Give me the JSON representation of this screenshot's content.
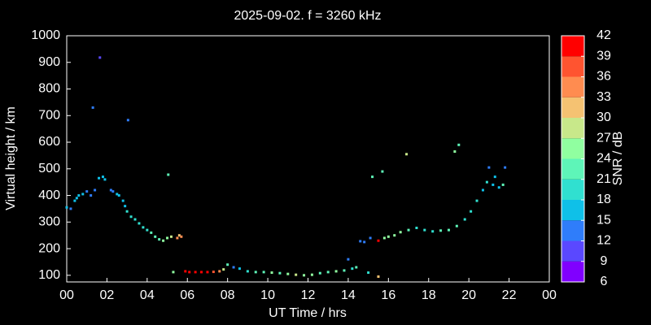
{
  "chart_data": {
    "type": "scatter",
    "title": "2025-09-02. f = 3260 kHz",
    "x_label": "UT Time / hrs",
    "y_label": "Virtual height / km",
    "xlim": [
      0,
      24
    ],
    "xticks": [
      {
        "value": 0,
        "label": "00"
      },
      {
        "value": 2,
        "label": "02"
      },
      {
        "value": 4,
        "label": "04"
      },
      {
        "value": 6,
        "label": "06"
      },
      {
        "value": 8,
        "label": "08"
      },
      10,
      12,
      14,
      16,
      18,
      20,
      22,
      {
        "value": 24,
        "label": "00"
      }
    ],
    "ylim": [
      75,
      1000
    ],
    "yticks": [
      100,
      200,
      300,
      400,
      500,
      600,
      700,
      800,
      900,
      1000
    ],
    "series": [
      {
        "x": [
          0.0,
          0.2,
          0.4,
          0.5,
          0.6,
          0.8,
          1.0,
          1.2,
          1.3,
          1.4,
          1.6,
          1.65,
          1.8,
          1.9,
          2.2,
          2.3,
          2.5,
          2.6,
          2.8,
          2.9,
          3.0,
          3.05,
          3.2,
          3.4,
          3.6,
          3.8,
          4.0,
          4.2,
          4.4,
          4.6,
          4.8,
          5.0,
          5.05,
          5.2,
          5.3,
          5.5,
          5.6,
          5.7,
          5.9,
          6.1,
          6.4,
          6.7,
          7.0,
          7.3,
          7.6,
          7.8,
          8.0,
          8.3,
          8.6,
          9.0,
          9.4,
          9.8,
          10.2,
          10.6,
          11.0,
          11.4,
          11.8,
          12.2,
          12.6,
          13.0,
          13.4,
          13.8,
          14.0,
          14.2,
          14.4,
          14.6,
          14.8,
          15.0,
          15.1,
          15.2,
          15.5,
          15.5,
          15.7,
          15.8,
          16.0,
          16.3,
          16.6,
          16.9,
          17.0,
          17.4,
          17.8,
          18.2,
          18.6,
          19.0,
          19.3,
          19.4,
          19.5,
          19.8,
          20.1,
          20.4,
          20.7,
          20.9,
          21.0,
          21.2,
          21.3,
          21.5,
          21.7,
          21.8
        ],
        "values": [
          355,
          350,
          380,
          390,
          400,
          405,
          415,
          400,
          730,
          420,
          465,
          918,
          470,
          460,
          420,
          415,
          405,
          400,
          380,
          360,
          340,
          683,
          320,
          310,
          295,
          280,
          270,
          260,
          245,
          235,
          230,
          240,
          478,
          245,
          112,
          240,
          250,
          245,
          115,
          112,
          112,
          112,
          112,
          113,
          115,
          122,
          140,
          130,
          125,
          115,
          112,
          112,
          110,
          108,
          105,
          102,
          100,
          102,
          108,
          112,
          115,
          118,
          160,
          125,
          130,
          228,
          225,
          110,
          240,
          470,
          230,
          95,
          490,
          240,
          245,
          250,
          262,
          555,
          270,
          278,
          270,
          265,
          268,
          270,
          565,
          285,
          590,
          310,
          340,
          380,
          420,
          450,
          505,
          440,
          470,
          430,
          440,
          505
        ],
        "snr": [
          15,
          12,
          15,
          15,
          15,
          15,
          12,
          12,
          12,
          12,
          15,
          9,
          15,
          15,
          12,
          12,
          15,
          15,
          15,
          15,
          18,
          12,
          18,
          18,
          18,
          18,
          18,
          21,
          21,
          21,
          24,
          24,
          21,
          27,
          24,
          33,
          30,
          33,
          39,
          42,
          42,
          42,
          39,
          36,
          33,
          27,
          21,
          12,
          15,
          18,
          21,
          21,
          24,
          21,
          24,
          27,
          24,
          24,
          21,
          21,
          24,
          21,
          12,
          18,
          21,
          12,
          12,
          18,
          12,
          21,
          39,
          30,
          21,
          24,
          24,
          24,
          24,
          27,
          21,
          18,
          18,
          18,
          21,
          21,
          24,
          21,
          21,
          18,
          18,
          18,
          15,
          18,
          12,
          15,
          15,
          15,
          21,
          12
        ]
      }
    ],
    "colorbar": {
      "label": "SNR / dB",
      "lim": [
        6,
        42
      ],
      "ticks": [
        6,
        9,
        12,
        15,
        18,
        21,
        24,
        27,
        30,
        33,
        36,
        39,
        42
      ],
      "colors": [
        "#8000ff",
        "#5a48ff",
        "#2f7dfa",
        "#0fc0e8",
        "#30e0d0",
        "#5ef5b8",
        "#90ffa0",
        "#c8e88a",
        "#f5c272",
        "#ff8c50",
        "#ff5430",
        "#ff0000"
      ]
    }
  }
}
